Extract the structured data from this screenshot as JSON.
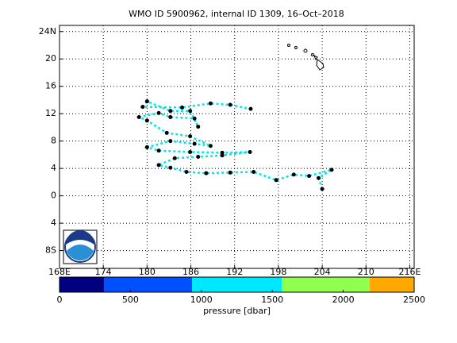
{
  "chart_data": {
    "type": "map",
    "title": "WMO ID 5900962, internal ID 1309, 16–Oct–2018",
    "xlim": [
      168,
      216.6
    ],
    "ylim": [
      -10.6,
      24.9
    ],
    "xticks": [
      {
        "value": 168,
        "label": "168E"
      },
      174,
      180,
      186,
      192,
      198,
      204,
      210,
      {
        "value": 216,
        "label": "216E"
      }
    ],
    "yticks": [
      {
        "value": 24,
        "label": "24N"
      },
      20,
      16,
      12,
      8,
      {
        "value": 4,
        "label": "4"
      },
      0,
      {
        "value": -4,
        "label": "4"
      },
      {
        "value": -8,
        "label": "8S"
      }
    ],
    "grid": true,
    "series": [
      {
        "color": "#00e5ee",
        "x": [
          204.0,
          203.5,
          205.3,
          202.2,
          200.1,
          197.7,
          194.6,
          191.4,
          188.1,
          185.4,
          183.2,
          181.6,
          183.8,
          187.0,
          190.3,
          194.1,
          190.3,
          185.9,
          181.6,
          180.0,
          183.2,
          186.5,
          188.7,
          185.9,
          182.7,
          180.0,
          178.9,
          181.6,
          183.2,
          186.5,
          187.0,
          185.9,
          183.2,
          180.0,
          179.4,
          184.8,
          188.7,
          191.4,
          194.2
        ],
        "values": [
          1.0,
          2.6,
          3.8,
          2.9,
          3.1,
          2.3,
          3.5,
          3.4,
          3.3,
          3.5,
          4.1,
          4.5,
          5.5,
          5.7,
          5.9,
          6.4,
          6.3,
          6.4,
          6.6,
          7.1,
          8.0,
          7.6,
          7.3,
          8.7,
          9.2,
          11.0,
          11.5,
          12.1,
          11.5,
          11.3,
          10.1,
          12.4,
          12.4,
          13.8,
          13.0,
          12.9,
          13.5,
          13.3,
          12.7
        ]
      }
    ],
    "colorbar": {
      "label": "pressure [dbar]",
      "lim": [
        0,
        2500
      ],
      "ticks": [
        0,
        500,
        1000,
        1500,
        2000,
        2500
      ],
      "bounds": [
        0,
        313,
        934,
        1566,
        2187,
        2500
      ],
      "colors": [
        "#000080",
        "#0050ff",
        "#00e8ff",
        "#90ff50",
        "#ffa800"
      ]
    }
  }
}
